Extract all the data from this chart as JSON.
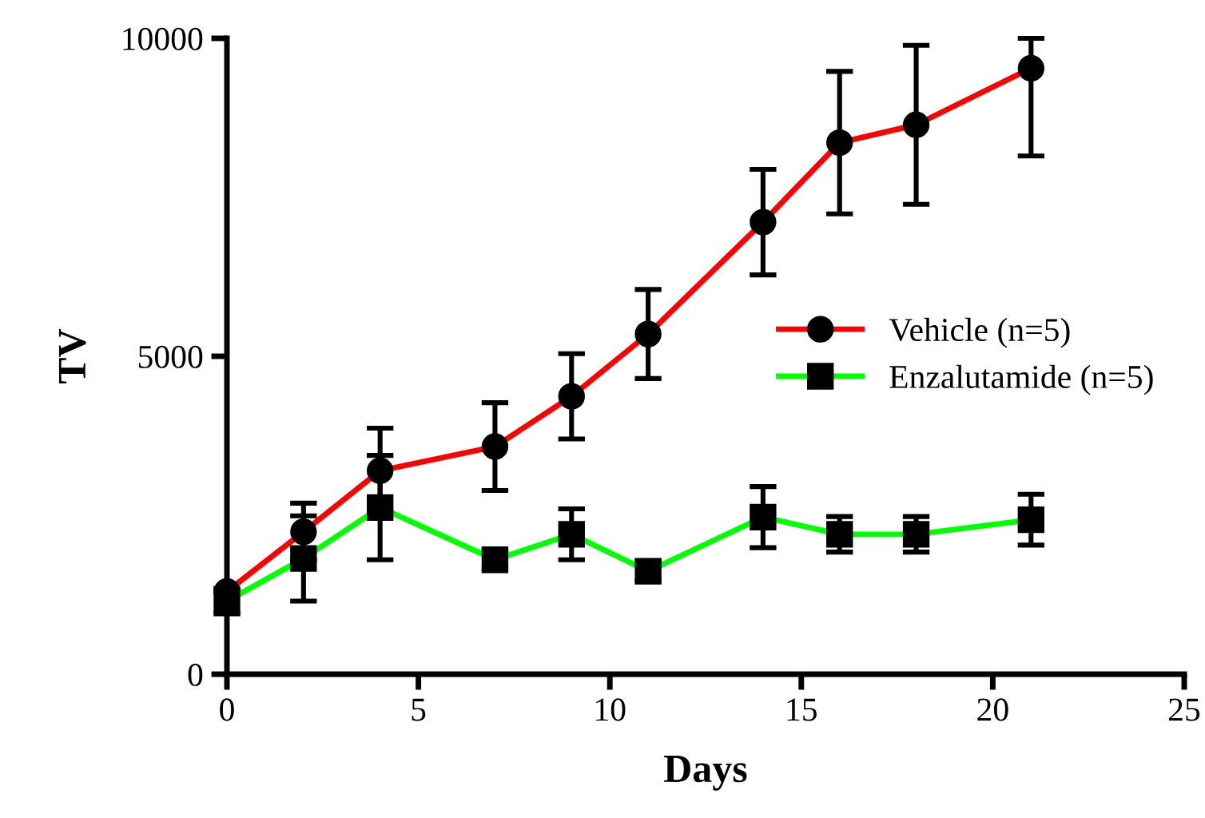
{
  "chart_data": {
    "type": "line",
    "xlabel": "Days",
    "ylabel": "TV",
    "x": [
      0,
      2,
      4,
      7,
      9,
      11,
      14,
      16,
      18,
      21
    ],
    "series": [
      {
        "name": "Vehicle (n=5)",
        "color": "#ff0000",
        "marker": "circle",
        "values": [
          1300,
          2240,
          3200,
          3580,
          4370,
          5350,
          7110,
          8360,
          8640,
          9530
        ],
        "errors": [
          null,
          450,
          670,
          690,
          670,
          700,
          830,
          1120,
          1250,
          [
            8150,
            10000
          ]
        ]
      },
      {
        "name": "Enzalutamide (n=5)",
        "color": "#00ff00",
        "marker": "square",
        "values": [
          1150,
          1820,
          2620,
          1800,
          2200,
          1620,
          2470,
          2200,
          2200,
          2430
        ],
        "errors": [
          200,
          670,
          820,
          150,
          400,
          150,
          480,
          280,
          280,
          400
        ]
      }
    ],
    "xlim": [
      0,
      25
    ],
    "xticks": [
      0,
      5,
      10,
      15,
      20,
      25
    ],
    "ylim": [
      0,
      10000
    ],
    "yticks": [
      0,
      5000,
      10000
    ],
    "grid": false,
    "legend": "right",
    "line_style": "solid"
  }
}
